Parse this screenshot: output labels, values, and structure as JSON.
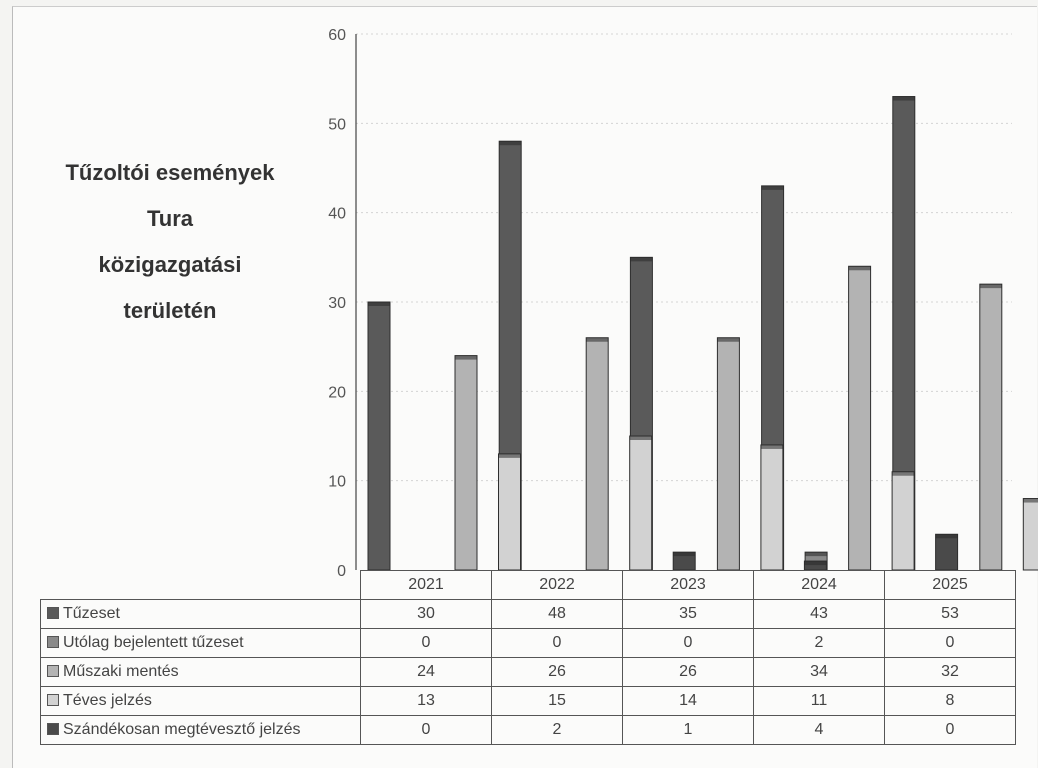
{
  "chart_data": {
    "type": "bar",
    "title_lines": [
      "Tűzoltói események",
      "Tura",
      "közigazgatási",
      "területén"
    ],
    "categories": [
      "2021",
      "2022",
      "2023",
      "2024",
      "2025"
    ],
    "ylim": [
      0,
      60
    ],
    "yticks": [
      "0",
      "10",
      "20",
      "30",
      "40",
      "50",
      "60"
    ],
    "series": [
      {
        "name": "Tűzeset",
        "values": [
          30,
          48,
          35,
          43,
          53
        ],
        "color": "#5a5a5a"
      },
      {
        "name": "Utólag bejelentett tűzeset",
        "values": [
          0,
          0,
          0,
          2,
          0
        ],
        "color": "#8a8a8a"
      },
      {
        "name": "Műszaki mentés",
        "values": [
          24,
          26,
          26,
          34,
          32
        ],
        "color": "#b3b3b3"
      },
      {
        "name": "Téves jelzés",
        "values": [
          13,
          15,
          14,
          11,
          8
        ],
        "color": "#d2d2d2"
      },
      {
        "name": "Szándékosan megtévesztő jelzés",
        "values": [
          0,
          2,
          1,
          4,
          0
        ],
        "color": "#4a4a4a"
      }
    ],
    "value_labels": [
      [
        "30",
        "48",
        "35",
        "43",
        "53"
      ],
      [
        "0",
        "0",
        "0",
        "2",
        "0"
      ],
      [
        "24",
        "26",
        "26",
        "34",
        "32"
      ],
      [
        "13",
        "15",
        "14",
        "11",
        "8"
      ],
      [
        "0",
        "2",
        "1",
        "4",
        "0"
      ]
    ],
    "grid": true,
    "legend": "data-table"
  }
}
